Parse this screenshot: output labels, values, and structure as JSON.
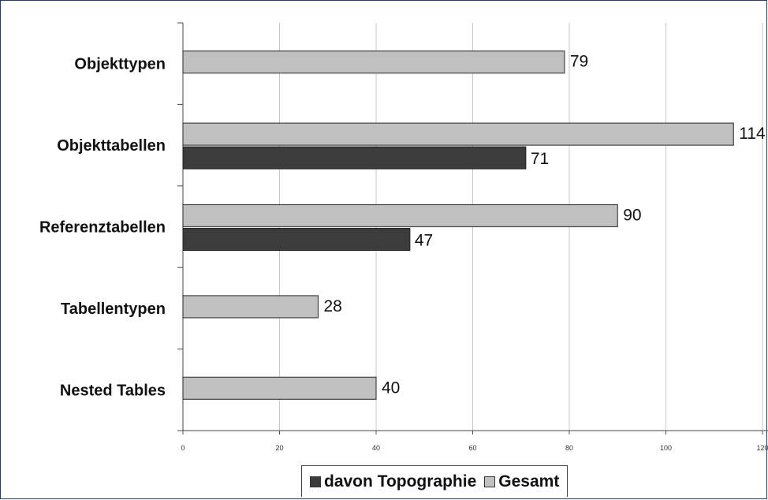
{
  "chart_data": {
    "type": "bar",
    "orientation": "horizontal",
    "categories": [
      "Objekttypen",
      "Objekttabellen",
      "Referenztabellen",
      "Tabellentypen",
      "Nested Tables"
    ],
    "series": [
      {
        "name": "Gesamt",
        "values": [
          79,
          114,
          90,
          28,
          40
        ],
        "color": "#c0c0c0"
      },
      {
        "name": "davon Topographie",
        "values": [
          null,
          71,
          47,
          null,
          null
        ],
        "color": "#3c3c3c"
      }
    ],
    "x_ticks": [
      0,
      20,
      40,
      60,
      80,
      100,
      120
    ],
    "x_tick_labels": [
      "0",
      "20",
      "40",
      "60",
      "80",
      "100",
      "120"
    ],
    "xlim": [
      0,
      120
    ],
    "grid": "vertical",
    "legend": {
      "position": "bottom",
      "items": [
        {
          "label": "davon Topographie",
          "color": "#3c3c3c"
        },
        {
          "label": "Gesamt",
          "color": "#c0c0c0"
        }
      ]
    }
  }
}
